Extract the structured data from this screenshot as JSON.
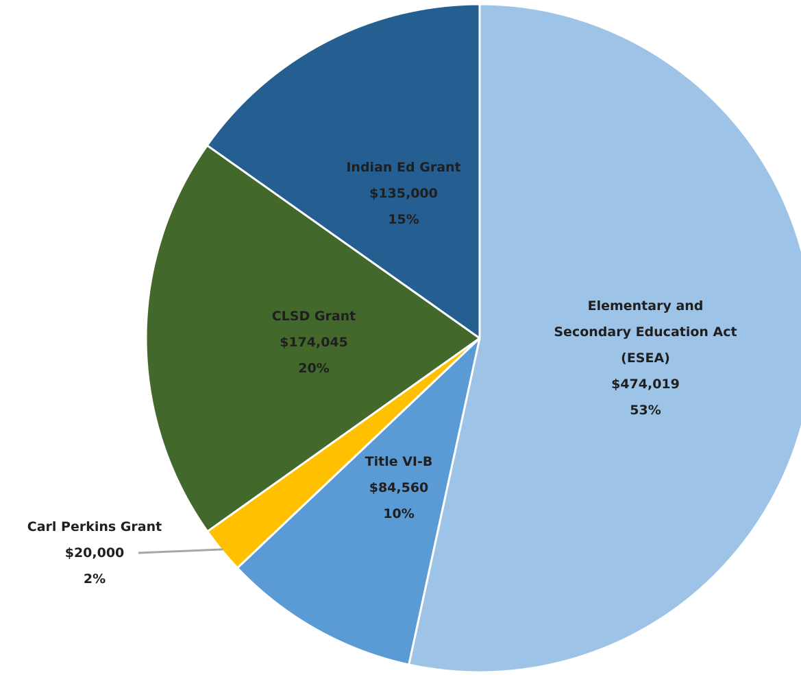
{
  "chart_data": {
    "type": "pie",
    "title": "",
    "start_angle_deg": 0,
    "direction": "clockwise",
    "slices": [
      {
        "name_lines": [
          "Elementary and",
          "Secondary Education Act",
          "(ESEA)"
        ],
        "value": 474019,
        "value_label": "$474,019",
        "percent_label": "53%",
        "color": "#9DC3E6",
        "text_color": "#1F1F1F"
      },
      {
        "name_lines": [
          "Title VI-B"
        ],
        "value": 84560,
        "value_label": "$84,560",
        "percent_label": "10%",
        "color": "#5B9BD5",
        "text_color": "#1F1F1F"
      },
      {
        "name_lines": [
          "Carl Perkins Grant"
        ],
        "value": 20000,
        "value_label": "$20,000",
        "percent_label": "2%",
        "color": "#FFC000",
        "text_color": "#1F1F1F",
        "label_outside": true
      },
      {
        "name_lines": [
          "CLSD Grant"
        ],
        "value": 174045,
        "value_label": "$174,045",
        "percent_label": "20%",
        "color": "#43682B",
        "text_color": "#1F1F1F"
      },
      {
        "name_lines": [
          "Indian Ed Grant"
        ],
        "value": 135000,
        "value_label": "$135,000",
        "percent_label": "15%",
        "color": "#255E91",
        "text_color": "#1F1F1F"
      }
    ]
  }
}
